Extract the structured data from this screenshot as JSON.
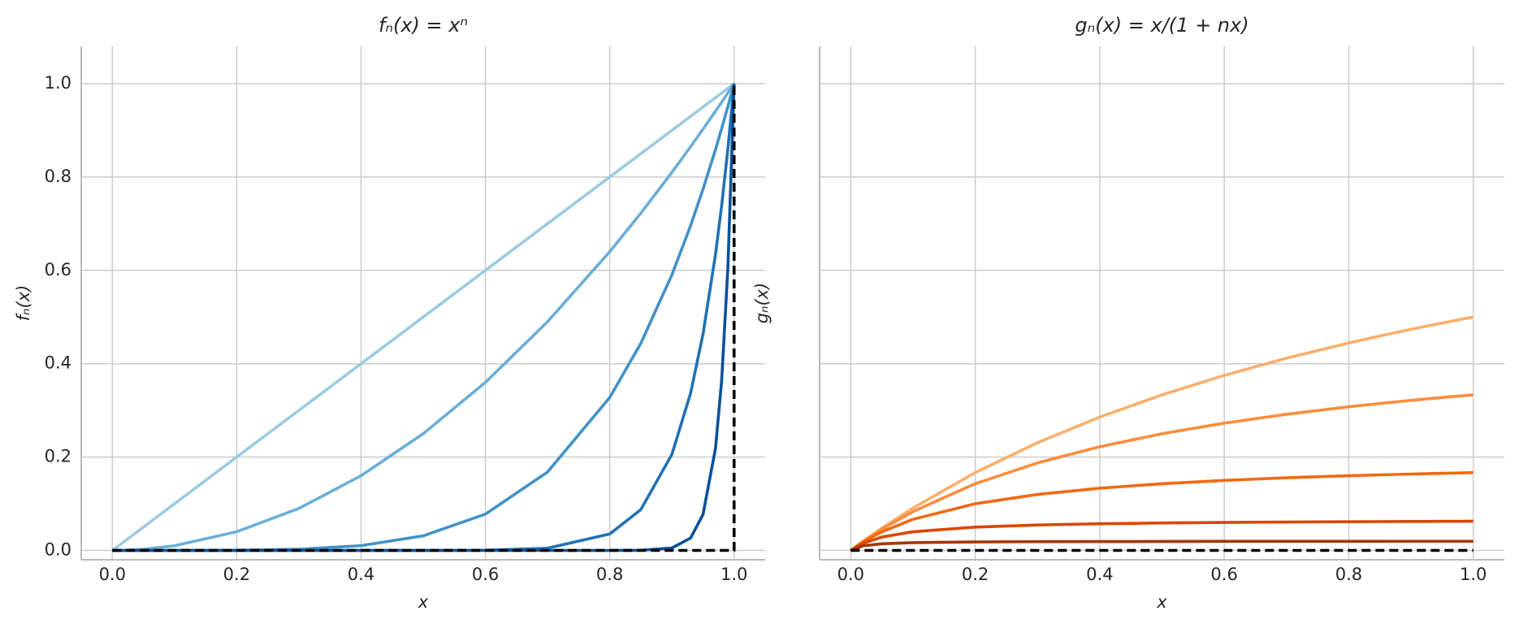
{
  "chart_data": [
    {
      "type": "line",
      "title": "fₙ(x) = xⁿ",
      "xlabel": "x",
      "ylabel": "fₙ(x)",
      "x": [
        0,
        0.02,
        0.05,
        0.1,
        0.2,
        0.3,
        0.4,
        0.5,
        0.6,
        0.7,
        0.8,
        0.85,
        0.9,
        0.93,
        0.95,
        0.97,
        0.98,
        0.99,
        1.0
      ],
      "series": [
        {
          "color": "#9ecae1",
          "values": [
            0,
            0.02,
            0.05,
            0.1,
            0.2,
            0.3,
            0.4,
            0.5,
            0.6,
            0.7,
            0.8,
            0.85,
            0.9,
            0.93,
            0.95,
            0.97,
            0.98,
            0.99,
            1.0
          ]
        },
        {
          "color": "#6baed6",
          "values": [
            0,
            0.0004,
            0.0025,
            0.01,
            0.04,
            0.09,
            0.16,
            0.25,
            0.36,
            0.49,
            0.64,
            0.7225,
            0.81,
            0.8649,
            0.9025,
            0.9409,
            0.9604,
            0.9801,
            1
          ]
        },
        {
          "color": "#4292c6",
          "values": [
            0,
            0,
            0,
            1e-05,
            0.00032,
            0.00243,
            0.01024,
            0.03125,
            0.07776,
            0.16807,
            0.32768,
            0.4437,
            0.59049,
            0.6957,
            0.7738,
            0.8587,
            0.9039,
            0.951,
            1
          ]
        },
        {
          "color": "#2171b5",
          "values": [
            0,
            0,
            0,
            0,
            0,
            0,
            0,
            3e-05,
            0.00047,
            0.00475,
            0.0352,
            0.0874,
            0.2059,
            0.3367,
            0.4633,
            0.6333,
            0.7386,
            0.8601,
            1
          ]
        },
        {
          "color": "#08519c",
          "values": [
            0,
            0,
            0,
            0,
            0,
            0,
            0,
            0,
            0,
            0,
            1e-05,
            0.0003,
            0.0052,
            0.0265,
            0.0769,
            0.218,
            0.364,
            0.605,
            1
          ]
        },
        {
          "color": "#000000",
          "dashed": true,
          "x": [
            0,
            1,
            1
          ],
          "values": [
            0,
            0,
            1
          ]
        }
      ],
      "xlim": [
        -0.05,
        1.05
      ],
      "xticks": [
        {
          "value": 0,
          "label": "0.0"
        },
        {
          "value": 0.2,
          "label": "0.2"
        },
        {
          "value": 0.4,
          "label": "0.4"
        },
        {
          "value": 0.6,
          "label": "0.6"
        },
        {
          "value": 0.8,
          "label": "0.8"
        },
        {
          "value": 1,
          "label": "1.0"
        }
      ],
      "ylim": [
        -0.02,
        1.08
      ],
      "yticks": [
        {
          "value": 0,
          "label": "0.0"
        },
        {
          "value": 0.2,
          "label": "0.2"
        },
        {
          "value": 0.4,
          "label": "0.4"
        },
        {
          "value": 0.6,
          "label": "0.6"
        },
        {
          "value": 0.8,
          "label": "0.8"
        },
        {
          "value": 1,
          "label": "1.0"
        }
      ],
      "grid": true
    },
    {
      "type": "line",
      "title": "gₙ(x) = x/(1 + nx)",
      "xlabel": "x",
      "ylabel": "gₙ(x)",
      "x": [
        0,
        0.02,
        0.05,
        0.1,
        0.2,
        0.3,
        0.4,
        0.5,
        0.6,
        0.7,
        0.8,
        0.85,
        0.9,
        0.93,
        0.95,
        0.97,
        0.98,
        0.99,
        1.0
      ],
      "series": [
        {
          "color": "#fdae6b",
          "values": [
            0,
            0.0196,
            0.0476,
            0.0909,
            0.1667,
            0.2308,
            0.2857,
            0.3333,
            0.375,
            0.4118,
            0.4444,
            0.4595,
            0.4737,
            0.4819,
            0.4872,
            0.4924,
            0.4949,
            0.4975,
            0.5
          ]
        },
        {
          "color": "#fd8d3c",
          "values": [
            0,
            0.0192,
            0.0455,
            0.0833,
            0.1429,
            0.1875,
            0.2222,
            0.25,
            0.2727,
            0.2917,
            0.3077,
            0.3148,
            0.3214,
            0.3252,
            0.3276,
            0.33,
            0.3311,
            0.3322,
            0.3333
          ]
        },
        {
          "color": "#f16913",
          "values": [
            0,
            0.0182,
            0.04,
            0.0667,
            0.1,
            0.12,
            0.1333,
            0.1429,
            0.15,
            0.1556,
            0.16,
            0.1619,
            0.1636,
            0.1646,
            0.1652,
            0.1658,
            0.1661,
            0.1664,
            0.1667
          ]
        },
        {
          "color": "#d94801",
          "values": [
            0,
            0.0154,
            0.0286,
            0.04,
            0.05,
            0.0545,
            0.0571,
            0.0588,
            0.06,
            0.0609,
            0.0615,
            0.0618,
            0.0621,
            0.0622,
            0.0623,
            0.0624,
            0.0624,
            0.0625,
            0.0625
          ]
        },
        {
          "color": "#a63603",
          "values": [
            0,
            0.01,
            0.0143,
            0.0167,
            0.0182,
            0.0188,
            0.019,
            0.0192,
            0.0194,
            0.0194,
            0.0195,
            0.0195,
            0.0196,
            0.0196,
            0.0196,
            0.0196,
            0.0196,
            0.0196,
            0.0196
          ]
        },
        {
          "color": "#000000",
          "dashed": true,
          "x": [
            0,
            1
          ],
          "values": [
            0,
            0
          ]
        }
      ],
      "xlim": [
        -0.05,
        1.05
      ],
      "xticks": [
        {
          "value": 0,
          "label": "0.0"
        },
        {
          "value": 0.2,
          "label": "0.2"
        },
        {
          "value": 0.4,
          "label": "0.4"
        },
        {
          "value": 0.6,
          "label": "0.6"
        },
        {
          "value": 0.8,
          "label": "0.8"
        },
        {
          "value": 1,
          "label": "1.0"
        }
      ],
      "ylim": [
        -0.02,
        1.08
      ],
      "sharey": true,
      "grid": true
    }
  ]
}
